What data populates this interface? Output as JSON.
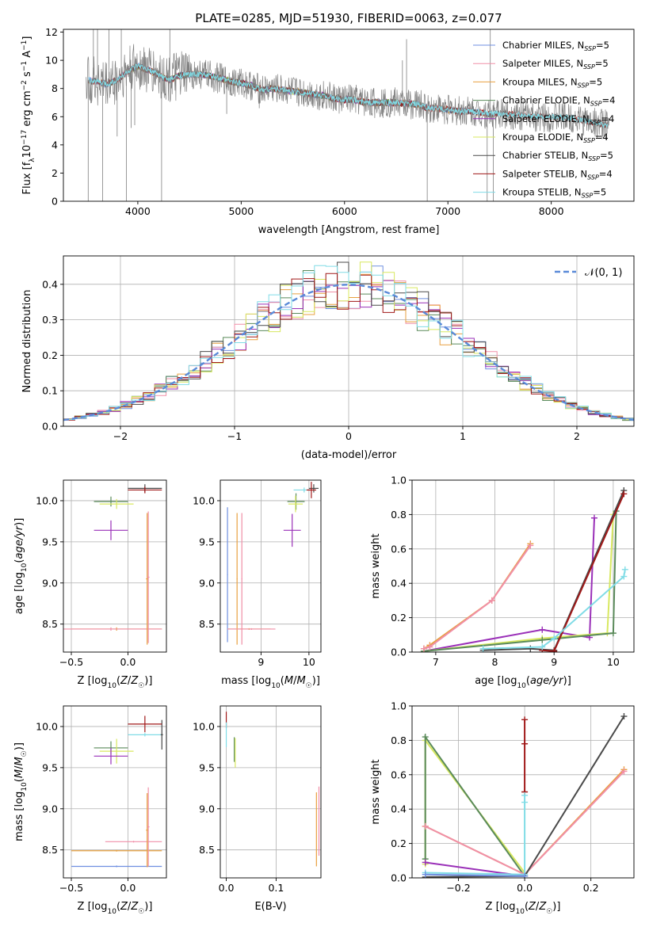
{
  "figure": {
    "title": "PLATE=0285, MJD=51930, FIBERID=0063, z=0.077"
  },
  "colors": {
    "Chabrier MILES": "#6f8fe0",
    "Salpeter MILES": "#f08fa8",
    "Kroupa MILES": "#e8a040",
    "Chabrier ELODIE": "#5a8a5a",
    "Salpeter ELODIE": "#9a30b8",
    "Kroupa ELODIE": "#d8e860",
    "Chabrier STELIB": "#4a4a4a",
    "Salpeter STELIB": "#a01818",
    "Kroupa STELIB": "#80dce6",
    "data": "#808080",
    "gauss": "#5a8ad8"
  },
  "chart_data": [
    {
      "id": "spectrum",
      "type": "line",
      "title": "PLATE=0285, MJD=51930, FIBERID=0063, z=0.077",
      "xlabel": "wavelength [Angstrom, rest frame]",
      "ylabel": "Flux [fλ10⁻¹⁷ erg cm⁻² s⁻¹ A⁻¹]",
      "xlim": [
        3280,
        8800
      ],
      "ylim": [
        0,
        12.2
      ],
      "xticks": [
        4000,
        5000,
        6000,
        7000,
        8000
      ],
      "yticks": [
        0,
        2,
        4,
        6,
        8,
        10,
        12
      ],
      "grid": false,
      "legend_position": "top-right",
      "legend": [
        {
          "model": "Chabrier MILES",
          "label": "Chabrier MILES, N",
          "sub": "SSP",
          "n": "=5"
        },
        {
          "model": "Salpeter MILES",
          "label": "Salpeter MILES, N",
          "sub": "SSP",
          "n": "=5"
        },
        {
          "model": "Kroupa MILES",
          "label": "Kroupa MILES, N",
          "sub": "SSP",
          "n": "=5"
        },
        {
          "model": "Chabrier ELODIE",
          "label": "Chabrier ELODIE, N",
          "sub": "SSP",
          "n": "=4"
        },
        {
          "model": "Salpeter ELODIE",
          "label": "Salpeter ELODIE, N",
          "sub": "SSP",
          "n": "=4"
        },
        {
          "model": "Kroupa ELODIE",
          "label": "Kroupa ELODIE, N",
          "sub": "SSP",
          "n": "=4"
        },
        {
          "model": "Chabrier STELIB",
          "label": "Chabrier STELIB, N",
          "sub": "SSP",
          "n": "=5"
        },
        {
          "model": "Salpeter STELIB",
          "label": "Salpeter STELIB, N",
          "sub": "SSP",
          "n": "=4"
        },
        {
          "model": "Kroupa STELIB",
          "label": "Kroupa STELIB, N",
          "sub": "SSP",
          "n": "=5"
        }
      ],
      "continuum": [
        [
          3500,
          8.6
        ],
        [
          3600,
          8.5
        ],
        [
          3700,
          8.3
        ],
        [
          3800,
          8.6
        ],
        [
          3900,
          9.2
        ],
        [
          4000,
          9.6
        ],
        [
          4100,
          9.3
        ],
        [
          4200,
          9.0
        ],
        [
          4300,
          8.6
        ],
        [
          4400,
          8.9
        ],
        [
          4500,
          9.0
        ],
        [
          4600,
          9.0
        ],
        [
          4700,
          8.9
        ],
        [
          4800,
          8.7
        ],
        [
          4900,
          8.5
        ],
        [
          5000,
          8.4
        ],
        [
          5100,
          8.2
        ],
        [
          5200,
          7.9
        ],
        [
          5300,
          8.0
        ],
        [
          5400,
          7.9
        ],
        [
          5500,
          7.8
        ],
        [
          5600,
          7.7
        ],
        [
          5700,
          7.6
        ],
        [
          5800,
          7.5
        ],
        [
          5900,
          7.3
        ],
        [
          6000,
          7.2
        ],
        [
          6100,
          7.2
        ],
        [
          6200,
          7.0
        ],
        [
          6300,
          7.0
        ],
        [
          6400,
          7.0
        ],
        [
          6500,
          7.0
        ],
        [
          6600,
          6.9
        ],
        [
          6700,
          6.9
        ],
        [
          6800,
          6.6
        ],
        [
          6900,
          6.6
        ],
        [
          7000,
          6.5
        ],
        [
          7100,
          6.4
        ],
        [
          7200,
          6.4
        ],
        [
          7300,
          6.3
        ],
        [
          7400,
          6.2
        ],
        [
          7600,
          6.2
        ],
        [
          7800,
          6.0
        ],
        [
          8000,
          6.0
        ],
        [
          8200,
          5.9
        ],
        [
          8400,
          5.6
        ],
        [
          8550,
          5.4
        ]
      ],
      "spikes": [
        [
          3520,
          0
        ],
        [
          3570,
          12.2
        ],
        [
          3610,
          12.2
        ],
        [
          3660,
          0
        ],
        [
          3720,
          12.2
        ],
        [
          3800,
          4.6
        ],
        [
          3840,
          12.2
        ],
        [
          3890,
          0
        ],
        [
          3935,
          5.2
        ],
        [
          3970,
          5.4
        ],
        [
          4230,
          0
        ],
        [
          4310,
          12.2
        ],
        [
          4860,
          6.2
        ],
        [
          5175,
          6.6
        ],
        [
          5890,
          6.4
        ],
        [
          6560,
          10
        ],
        [
          6600,
          11.5
        ],
        [
          6800,
          0
        ],
        [
          7380,
          0
        ],
        [
          7410,
          12.2
        ],
        [
          7440,
          0
        ],
        [
          8500,
          4.6
        ],
        [
          8540,
          4.8
        ]
      ]
    },
    {
      "id": "residuals",
      "type": "histogram",
      "xlabel": "(data-model)/error",
      "ylabel": "Normed distribution",
      "xlim": [
        -2.5,
        2.5
      ],
      "ylim": [
        0,
        0.48
      ],
      "xticks": [
        -2,
        -1,
        0,
        1,
        2
      ],
      "yticks": [
        0.0,
        0.1,
        0.2,
        0.3,
        0.4
      ],
      "grid": true,
      "legend_position": "top-right",
      "legend_label": "𝒩(0, 1)",
      "bin_width": 0.1,
      "gaussian": {
        "mu": 0,
        "sigma": 1
      }
    },
    {
      "id": "age_vs_Z",
      "type": "errorbar",
      "xlabel": "Z [log₁₀(Z/Z☉)]",
      "ylabel": "age  [log₁₀(age/yr)]",
      "xlim": [
        -0.57,
        0.34
      ],
      "ylim": [
        8.16,
        10.25
      ],
      "xticks": [
        -0.5,
        0.0
      ],
      "yticks": [
        8.5,
        9.0,
        9.5,
        10.0
      ],
      "grid": true,
      "points": [
        {
          "model": "Kroupa MILES",
          "x": -0.1,
          "xerr": 0.4,
          "y": 8.44,
          "yerr": 0.02
        },
        {
          "model": "Salpeter MILES",
          "x": -0.15,
          "xerr": 0.45,
          "y": 8.44,
          "yerr": 0.02
        },
        {
          "model": "Kroupa MILES",
          "x": 0.17,
          "xerr": 0.01,
          "y": 9.05,
          "yerr": 0.8
        },
        {
          "model": "Salpeter MILES",
          "x": 0.18,
          "xerr": 0.01,
          "y": 9.07,
          "yerr": 0.8
        },
        {
          "model": "Salpeter ELODIE",
          "x": -0.15,
          "xerr": 0.15,
          "y": 9.64,
          "yerr": 0.12
        },
        {
          "model": "Chabrier ELODIE",
          "x": -0.15,
          "xerr": 0.15,
          "y": 9.99,
          "yerr": 0.06
        },
        {
          "model": "Kroupa ELODIE",
          "x": -0.1,
          "xerr": 0.15,
          "y": 9.96,
          "yerr": 0.06
        },
        {
          "model": "Kroupa STELIB",
          "x": 0.15,
          "xerr": 0.12,
          "y": 10.13,
          "yerr": 0.02
        },
        {
          "model": "Chabrier STELIB",
          "x": 0.15,
          "xerr": 0.15,
          "y": 10.15,
          "yerr": 0.05
        },
        {
          "model": "Salpeter STELIB",
          "x": 0.15,
          "xerr": 0.15,
          "y": 10.13,
          "yerr": 0.04
        }
      ]
    },
    {
      "id": "age_vs_mass",
      "type": "errorbar",
      "xlabel": "mass [log₁₀(M/M☉)]",
      "ylabel": "",
      "xlim": [
        8.15,
        10.25
      ],
      "ylim": [
        8.16,
        10.25
      ],
      "xticks": [
        9,
        10
      ],
      "yticks": [
        8.5,
        9.0,
        9.5,
        10.0
      ],
      "grid": true,
      "points": [
        {
          "model": "Chabrier MILES",
          "x": 8.3,
          "xerr": 0.01,
          "y": 9.1,
          "yerr": 0.82
        },
        {
          "model": "Kroupa MILES",
          "x": 8.5,
          "xerr": 0.01,
          "y": 9.05,
          "yerr": 0.8
        },
        {
          "model": "Salpeter MILES",
          "x": 8.6,
          "xerr": 0.01,
          "y": 9.05,
          "yerr": 0.8
        },
        {
          "model": "Kroupa MILES",
          "x": 8.75,
          "xerr": 0.45,
          "y": 8.44,
          "yerr": 0.01
        },
        {
          "model": "Salpeter MILES",
          "x": 8.8,
          "xerr": 0.5,
          "y": 8.44,
          "yerr": 0.01
        },
        {
          "model": "Salpeter ELODIE",
          "x": 9.65,
          "xerr": 0.18,
          "y": 9.64,
          "yerr": 0.2
        },
        {
          "model": "Chabrier ELODIE",
          "x": 9.73,
          "xerr": 0.18,
          "y": 9.99,
          "yerr": 0.1
        },
        {
          "model": "Kroupa ELODIE",
          "x": 9.72,
          "xerr": 0.15,
          "y": 9.96,
          "yerr": 0.1
        },
        {
          "model": "Kroupa STELIB",
          "x": 9.9,
          "xerr": 0.22,
          "y": 10.13,
          "yerr": 0.03
        },
        {
          "model": "Chabrier STELIB",
          "x": 10.1,
          "xerr": 0.1,
          "y": 10.15,
          "yerr": 0.05
        },
        {
          "model": "Salpeter STELIB",
          "x": 10.05,
          "xerr": 0.1,
          "y": 10.13,
          "yerr": 0.1
        }
      ]
    },
    {
      "id": "weight_vs_age",
      "type": "line",
      "xlabel": "age  [log₁₀(age/yr)]",
      "ylabel": "mass weight",
      "xlim": [
        6.6,
        10.35
      ],
      "ylim": [
        0,
        1.0
      ],
      "xticks": [
        7,
        8,
        9,
        10
      ],
      "yticks": [
        0.0,
        0.2,
        0.4,
        0.6,
        0.8,
        1.0
      ],
      "grid": true,
      "series": [
        {
          "model": "Salpeter ELODIE",
          "x": [
            6.8,
            8.8,
            9.6,
            9.68
          ],
          "y": [
            0.005,
            0.13,
            0.085,
            0.78
          ]
        },
        {
          "model": "Kroupa ELODIE",
          "x": [
            6.8,
            8.8,
            9.9,
            10.0
          ],
          "y": [
            0.005,
            0.08,
            0.11,
            0.8
          ]
        },
        {
          "model": "Chabrier ELODIE",
          "x": [
            6.8,
            8.8,
            10.0,
            10.05
          ],
          "y": [
            0.005,
            0.07,
            0.11,
            0.82
          ]
        },
        {
          "model": "Chabrier STELIB",
          "x": [
            7.8,
            8.6,
            9.0,
            10.18
          ],
          "y": [
            0.01,
            0.02,
            0.01,
            0.94
          ]
        },
        {
          "model": "Salpeter STELIB",
          "x": [
            8.8,
            9.0,
            10.18
          ],
          "y": [
            0.01,
            0.005,
            0.92
          ]
        },
        {
          "model": "Kroupa STELIB",
          "x": [
            7.8,
            8.8,
            9.0,
            10.18,
            10.2
          ],
          "y": [
            0.02,
            0.03,
            0.08,
            0.44,
            0.48
          ]
        },
        {
          "model": "Kroupa MILES",
          "x": [
            6.8,
            6.9,
            7.95,
            8.6
          ],
          "y": [
            0.02,
            0.04,
            0.3,
            0.63
          ]
        },
        {
          "model": "Salpeter MILES",
          "x": [
            6.8,
            6.9,
            7.95,
            8.6
          ],
          "y": [
            0.02,
            0.03,
            0.3,
            0.62
          ]
        }
      ]
    },
    {
      "id": "mass_vs_Z",
      "type": "errorbar",
      "xlabel": "Z [log₁₀(Z/Z☉)]",
      "ylabel": "mass [log₁₀(M/M☉)]",
      "xlim": [
        -0.57,
        0.34
      ],
      "ylim": [
        8.16,
        10.25
      ],
      "xticks": [
        -0.5,
        0.0
      ],
      "yticks": [
        8.5,
        9.0,
        9.5,
        10.0
      ],
      "grid": true,
      "points": [
        {
          "model": "Chabrier MILES",
          "x": -0.1,
          "xerr": 0.4,
          "y": 8.3,
          "yerr": 0.01
        },
        {
          "model": "Kroupa MILES",
          "x": -0.1,
          "xerr": 0.4,
          "y": 8.49,
          "yerr": 0.01
        },
        {
          "model": "Salpeter MILES",
          "x": 0.05,
          "xerr": 0.25,
          "y": 8.6,
          "yerr": 0.01
        },
        {
          "model": "Kroupa MILES",
          "x": 0.17,
          "xerr": 0.01,
          "y": 8.74,
          "yerr": 0.45
        },
        {
          "model": "Salpeter MILES",
          "x": 0.18,
          "xerr": 0.01,
          "y": 8.78,
          "yerr": 0.48
        },
        {
          "model": "Chabrier ELODIE",
          "x": -0.15,
          "xerr": 0.15,
          "y": 9.74,
          "yerr": 0.08
        },
        {
          "model": "Kroupa ELODIE",
          "x": -0.1,
          "xerr": 0.15,
          "y": 9.7,
          "yerr": 0.15
        },
        {
          "model": "Salpeter ELODIE",
          "x": -0.15,
          "xerr": 0.15,
          "y": 9.64,
          "yerr": 0.1
        },
        {
          "model": "Kroupa STELIB",
          "x": 0.15,
          "xerr": 0.15,
          "y": 9.9,
          "yerr": 0.02
        },
        {
          "model": "Chabrier STELIB",
          "x": 0.3,
          "xerr": 0.01,
          "y": 9.9,
          "yerr": 0.18
        },
        {
          "model": "Salpeter STELIB",
          "x": 0.15,
          "xerr": 0.15,
          "y": 10.03,
          "yerr": 0.1
        }
      ]
    },
    {
      "id": "mass_vs_ebv",
      "type": "errorbar",
      "xlabel": "E(B-V)",
      "ylabel": "",
      "xlim": [
        -0.012,
        0.19
      ],
      "ylim": [
        8.16,
        10.25
      ],
      "xticks": [
        0.0,
        0.1
      ],
      "yticks": [
        8.5,
        9.0,
        9.5,
        10.0
      ],
      "grid": true,
      "points": [
        {
          "model": "Salpeter STELIB",
          "x": 0.0,
          "xerr": 0.0,
          "y": 10.08,
          "yerr": 0.1
        },
        {
          "model": "Kroupa STELIB",
          "x": 0.0,
          "xerr": 0.0,
          "y": 9.9,
          "yerr": 0.15
        },
        {
          "model": "Chabrier ELODIE",
          "x": 0.016,
          "xerr": 0.0,
          "y": 9.72,
          "yerr": 0.15
        },
        {
          "model": "Kroupa ELODIE",
          "x": 0.018,
          "xerr": 0.0,
          "y": 9.68,
          "yerr": 0.18
        },
        {
          "model": "Kroupa MILES",
          "x": 0.181,
          "xerr": 0.0,
          "y": 8.75,
          "yerr": 0.45
        },
        {
          "model": "Salpeter MILES",
          "x": 0.186,
          "xerr": 0.0,
          "y": 8.85,
          "yerr": 0.42
        }
      ]
    },
    {
      "id": "weight_vs_Z",
      "type": "line",
      "xlabel": "Z [log₁₀(Z/Z☉)]",
      "ylabel": "mass weight",
      "xlim": [
        -0.34,
        0.33
      ],
      "ylim": [
        0,
        1.0
      ],
      "xticks": [
        -0.2,
        0.0,
        0.2
      ],
      "yticks": [
        0.0,
        0.2,
        0.4,
        0.6,
        0.8,
        1.0
      ],
      "grid": true,
      "series": [
        {
          "model": "Kroupa ELODIE",
          "x": [
            -0.3,
            -0.3,
            0.0
          ],
          "y": [
            0.08,
            0.8,
            0.03
          ]
        },
        {
          "model": "Chabrier ELODIE",
          "x": [
            -0.3,
            -0.3,
            0.0
          ],
          "y": [
            0.11,
            0.82,
            0.01
          ]
        },
        {
          "model": "Salpeter ELODIE",
          "x": [
            -0.3,
            0.0
          ],
          "y": [
            0.09,
            0.01
          ]
        },
        {
          "model": "Kroupa MILES",
          "x": [
            -0.3,
            0.0,
            0.3
          ],
          "y": [
            0.3,
            0.02,
            0.63
          ]
        },
        {
          "model": "Salpeter MILES",
          "x": [
            -0.3,
            0.0,
            0.3
          ],
          "y": [
            0.3,
            0.02,
            0.62
          ]
        },
        {
          "model": "Chabrier STELIB",
          "x": [
            -0.3,
            0.0,
            0.3
          ],
          "y": [
            0.005,
            0.01,
            0.94
          ]
        },
        {
          "model": "Salpeter STELIB",
          "x": [
            0.0,
            0.0,
            0.0
          ],
          "y": [
            0.5,
            0.78,
            0.92
          ]
        },
        {
          "model": "Kroupa STELIB",
          "x": [
            -0.3,
            0.0,
            0.0,
            0.0
          ],
          "y": [
            0.03,
            0.02,
            0.44,
            0.48
          ]
        },
        {
          "model": "Chabrier MILES",
          "x": [
            -0.3,
            0.0
          ],
          "y": [
            0.02,
            0.01
          ]
        }
      ]
    }
  ]
}
